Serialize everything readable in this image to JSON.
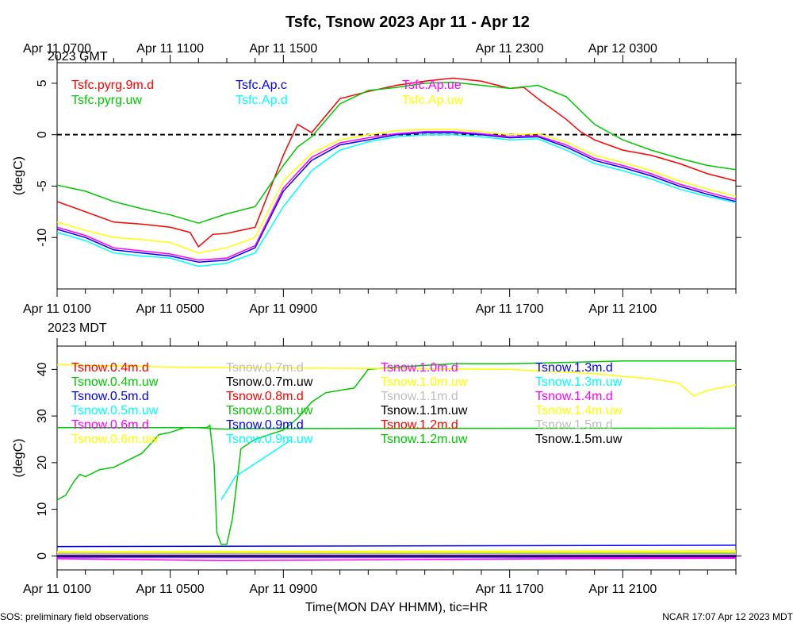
{
  "title": "Tsfc, Tsnow 2023 Apr 11 - Apr 12",
  "footer_left": "SOS: preliminary field observations",
  "footer_right": "NCAR 17:07 Apr 12 2023 MDT",
  "xlabel": "Time(MON DAY HHMM), tic=HR",
  "gmt_zone": "2023 GMT",
  "mdt_zone": "2023 MDT",
  "gmt_ticks": [
    {
      "hour": 0,
      "label": "Apr 11 0700"
    },
    {
      "hour": 4,
      "label": "Apr 11 1100"
    },
    {
      "hour": 8,
      "label": "Apr 11 1500"
    },
    {
      "hour": 16,
      "label": "Apr 11 2300"
    },
    {
      "hour": 20,
      "label": "Apr 12 0300"
    }
  ],
  "mdt_ticks": [
    {
      "hour": 0,
      "label": "Apr 11 0100"
    },
    {
      "hour": 4,
      "label": "Apr 11 0500"
    },
    {
      "hour": 8,
      "label": "Apr 11 0900"
    },
    {
      "hour": 16,
      "label": "Apr 11 1700"
    },
    {
      "hour": 20,
      "label": "Apr 11 2100"
    }
  ],
  "chart_data": [
    {
      "type": "line",
      "ylabel": "(degC)",
      "xlim": [
        0,
        24
      ],
      "ylim": [
        -15,
        7
      ],
      "yticks": [
        5,
        0,
        -5,
        -10
      ],
      "zero_line": true,
      "series": [
        {
          "name": "Tsfc.pyrg.9m.d",
          "color": "#ff0000",
          "x": [
            0,
            1,
            2,
            3,
            4,
            4.7,
            5,
            5.5,
            6,
            7,
            7.5,
            8,
            8.5,
            9,
            10,
            11,
            12,
            13,
            14,
            15,
            16,
            16.5,
            17,
            18,
            18.5,
            19,
            20,
            21,
            22,
            23,
            24
          ],
          "y": [
            -6.5,
            -7.5,
            -8.5,
            -8.7,
            -9.0,
            -9.5,
            -10.9,
            -9.7,
            -9.6,
            -9.0,
            -5.5,
            -2.0,
            1.0,
            0.2,
            3.5,
            4.2,
            4.8,
            5.2,
            5.5,
            5.2,
            4.5,
            4.6,
            3.5,
            1.5,
            0.3,
            -0.5,
            -1.5,
            -2.0,
            -2.8,
            -3.8,
            -4.5
          ]
        },
        {
          "name": "Tsfc.pyrg.uw",
          "color": "#00c800",
          "x": [
            0,
            1,
            2,
            3,
            4,
            5,
            6,
            7,
            8,
            8.5,
            9,
            10,
            11,
            12,
            13,
            14,
            15,
            16,
            17,
            18,
            19,
            20,
            21,
            22,
            23,
            24
          ],
          "y": [
            -4.9,
            -5.5,
            -6.5,
            -7.2,
            -7.8,
            -8.6,
            -7.7,
            -7.0,
            -3.0,
            -1.2,
            -0.2,
            3.0,
            4.3,
            4.6,
            5.0,
            5.1,
            4.8,
            4.5,
            4.8,
            3.7,
            1.0,
            -0.5,
            -1.5,
            -2.3,
            -3.0,
            -3.4
          ]
        },
        {
          "name": "Tsfc.Ap.c",
          "color": "#0000ff",
          "x": [
            0,
            1,
            2,
            3,
            4,
            5,
            6,
            7,
            8,
            9,
            10,
            11,
            12,
            13,
            14,
            15,
            16,
            17,
            18,
            19,
            20,
            21,
            22,
            23,
            24
          ],
          "y": [
            -9.2,
            -10.0,
            -11.2,
            -11.5,
            -11.8,
            -12.4,
            -12.2,
            -11.0,
            -5.5,
            -2.5,
            -1.0,
            -0.5,
            0.0,
            0.2,
            0.2,
            0.0,
            -0.3,
            -0.2,
            -1.2,
            -2.5,
            -3.2,
            -4.0,
            -5.0,
            -5.8,
            -6.5
          ]
        },
        {
          "name": "Tsfc.Ap.d",
          "color": "#00ffff",
          "x": [
            0,
            1,
            2,
            3,
            4,
            5,
            6,
            7,
            8,
            9,
            10,
            11,
            12,
            13,
            14,
            15,
            16,
            17,
            18,
            19,
            20,
            21,
            22,
            23,
            24
          ],
          "y": [
            -9.5,
            -10.3,
            -11.5,
            -11.8,
            -12.0,
            -12.8,
            -12.5,
            -11.5,
            -7.0,
            -3.5,
            -1.5,
            -0.7,
            -0.2,
            0.0,
            0.0,
            -0.2,
            -0.5,
            -0.4,
            -1.5,
            -2.8,
            -3.5,
            -4.3,
            -5.3,
            -6.0,
            -6.6
          ]
        },
        {
          "name": "Tsfc.Ap.ue",
          "color": "#ff00ff",
          "x": [
            0,
            1,
            2,
            3,
            4,
            5,
            6,
            7,
            8,
            9,
            10,
            11,
            12,
            13,
            14,
            15,
            16,
            17,
            18,
            19,
            20,
            21,
            22,
            23,
            24
          ],
          "y": [
            -9.0,
            -9.8,
            -11.0,
            -11.3,
            -11.6,
            -12.2,
            -12.0,
            -10.8,
            -5.2,
            -2.2,
            -0.8,
            -0.3,
            0.1,
            0.3,
            0.3,
            0.1,
            -0.2,
            -0.1,
            -1.0,
            -2.3,
            -3.0,
            -3.8,
            -4.8,
            -5.6,
            -6.3
          ]
        },
        {
          "name": "Tsfc.Ap.uw",
          "color": "#ffff00",
          "x": [
            0,
            1,
            2,
            3,
            4,
            5,
            6,
            7,
            8,
            9,
            10,
            11,
            12,
            13,
            14,
            15,
            16,
            17,
            18,
            19,
            20,
            21,
            22,
            23,
            24
          ],
          "y": [
            -8.5,
            -9.3,
            -10.0,
            -10.2,
            -10.5,
            -11.5,
            -11.0,
            -10.0,
            -4.5,
            -1.8,
            -0.5,
            0.0,
            0.4,
            0.5,
            0.5,
            0.3,
            0.0,
            0.1,
            -0.7,
            -2.0,
            -2.7,
            -3.5,
            -4.5,
            -5.3,
            -6.0
          ]
        }
      ]
    },
    {
      "type": "line",
      "ylabel": "(degC)",
      "xlim": [
        0,
        24
      ],
      "ylim": [
        -3,
        45
      ],
      "yticks": [
        40,
        30,
        20,
        10,
        0
      ],
      "series": [
        {
          "name": "Tsnow.0.4m.d",
          "color": "#ff0000",
          "x": [
            0,
            24
          ],
          "y": [
            0.5,
            0.5
          ]
        },
        {
          "name": "Tsnow.0.4m.uw",
          "color": "#00c800",
          "x": [
            0,
            0.3,
            0.6,
            0.8,
            1.0,
            1.5,
            2,
            2.5,
            3,
            3.3,
            3.6,
            4,
            4.5,
            5,
            5.5,
            6,
            6.5,
            24
          ],
          "y": [
            12,
            13,
            16,
            17.5,
            17,
            18.5,
            19,
            20.5,
            22,
            24,
            26,
            26.5,
            27.5,
            27.5,
            27.3,
            27.2,
            27.3,
            27.4
          ]
        },
        {
          "name": "Tsnow.0.5m.d",
          "color": "#0000ff",
          "x": [
            0,
            24
          ],
          "y": [
            2.0,
            2.3
          ]
        },
        {
          "name": "Tsnow.0.5m.uw",
          "color": "#00ffff",
          "x": [
            0,
            24
          ],
          "y": [
            -0.4,
            -0.4
          ]
        },
        {
          "name": "Tsnow.0.6m.d",
          "color": "#ff00ff",
          "x": [
            0,
            6,
            12,
            18,
            24
          ],
          "y": [
            -0.6,
            -1.0,
            -0.8,
            -0.6,
            -0.5
          ]
        },
        {
          "name": "Tsnow.0.6m.uw",
          "color": "#ffff00",
          "x": [
            0,
            24
          ],
          "y": [
            0.9,
            1.1
          ]
        },
        {
          "name": "Tsnow.0.7m.d",
          "color": "#bebebe",
          "x": [
            0,
            24
          ],
          "y": [
            0.2,
            0.3
          ]
        },
        {
          "name": "Tsnow.0.7m.uw",
          "color": "#000000",
          "x": [
            0,
            24
          ],
          "y": [
            0.1,
            0.1
          ]
        },
        {
          "name": "Tsnow.0.8m.d",
          "color": "#ff0000",
          "x": [
            0,
            24
          ],
          "y": [
            0.3,
            0.3
          ]
        },
        {
          "name": "Tsnow.0.8m.uw",
          "color": "#00c800",
          "x": [
            0,
            5.3,
            5.4,
            5.55,
            5.65,
            5.8,
            6,
            6.2,
            6.5,
            7,
            7.5,
            8,
            8.5,
            9,
            9.5,
            10,
            10.5,
            11,
            12,
            14,
            16,
            18,
            20,
            22,
            24
          ],
          "y": [
            27.5,
            27.5,
            28,
            20,
            5,
            2.5,
            2.5,
            8,
            23,
            25,
            26,
            27,
            29.5,
            33,
            35,
            35.5,
            36,
            40,
            40.5,
            41.2,
            41.2,
            41.5,
            41.8,
            41.8,
            41.8
          ]
        },
        {
          "name": "Tsnow.0.9m.d",
          "color": "#0000ff",
          "x": [
            0,
            24
          ],
          "y": [
            -0.2,
            -0.2
          ]
        },
        {
          "name": "Tsnow.0.9m.uw",
          "color": "#00ffff",
          "x": [
            5.8,
            6.3,
            6.8,
            7.3,
            7.8,
            8.3
          ],
          "y": [
            12,
            17,
            19,
            21,
            23,
            25
          ]
        },
        {
          "name": "Tsnow.1.0m.d",
          "color": "#ff00ff",
          "x": [
            0,
            24
          ],
          "y": [
            -0.3,
            -0.3
          ]
        },
        {
          "name": "Tsnow.1.0m.uw",
          "color": "#ffff00",
          "x": [
            0,
            4,
            8,
            12,
            16,
            17,
            18,
            19,
            20,
            21,
            22,
            22.5,
            23,
            24
          ],
          "y": [
            41,
            40.5,
            40.3,
            40.2,
            40,
            39.7,
            39.4,
            39.1,
            38.5,
            38,
            37,
            34.3,
            35.5,
            36.7
          ]
        },
        {
          "name": "Tsnow.1.1m.d",
          "color": "#bebebe",
          "x": [
            0,
            24
          ],
          "y": [
            0.6,
            0.7
          ]
        },
        {
          "name": "Tsnow.1.1m.uw",
          "color": "#000000",
          "x": [
            0,
            24
          ],
          "y": [
            0.0,
            0.0
          ]
        },
        {
          "name": "Tsnow.1.2m.d",
          "color": "#ff0000",
          "x": [
            0,
            24
          ],
          "y": [
            0.2,
            0.2
          ]
        },
        {
          "name": "Tsnow.1.2m.uw",
          "color": "#00c800",
          "x": [
            0,
            24
          ],
          "y": [
            0.4,
            0.5
          ]
        },
        {
          "name": "Tsnow.1.3m.d",
          "color": "#0000ff",
          "x": [
            0,
            24
          ],
          "y": [
            -0.1,
            -0.1
          ]
        },
        {
          "name": "Tsnow.1.3m.uw",
          "color": "#00ffff",
          "x": [
            0,
            24
          ],
          "y": [
            0.3,
            0.3
          ]
        },
        {
          "name": "Tsnow.1.4m.d",
          "color": "#ff00ff",
          "x": [
            0,
            24
          ],
          "y": [
            0.1,
            0.1
          ]
        },
        {
          "name": "Tsnow.1.4m.uw",
          "color": "#ffff00",
          "x": [
            0,
            24
          ],
          "y": [
            0.8,
            0.8
          ]
        },
        {
          "name": "Tsnow.1.5m.d",
          "color": "#bebebe",
          "x": [
            0,
            24
          ],
          "y": [
            0.4,
            0.4
          ]
        },
        {
          "name": "Tsnow.1.5m.uw",
          "color": "#000000",
          "x": [
            0,
            24
          ],
          "y": [
            0.0,
            0.0
          ]
        }
      ]
    }
  ]
}
